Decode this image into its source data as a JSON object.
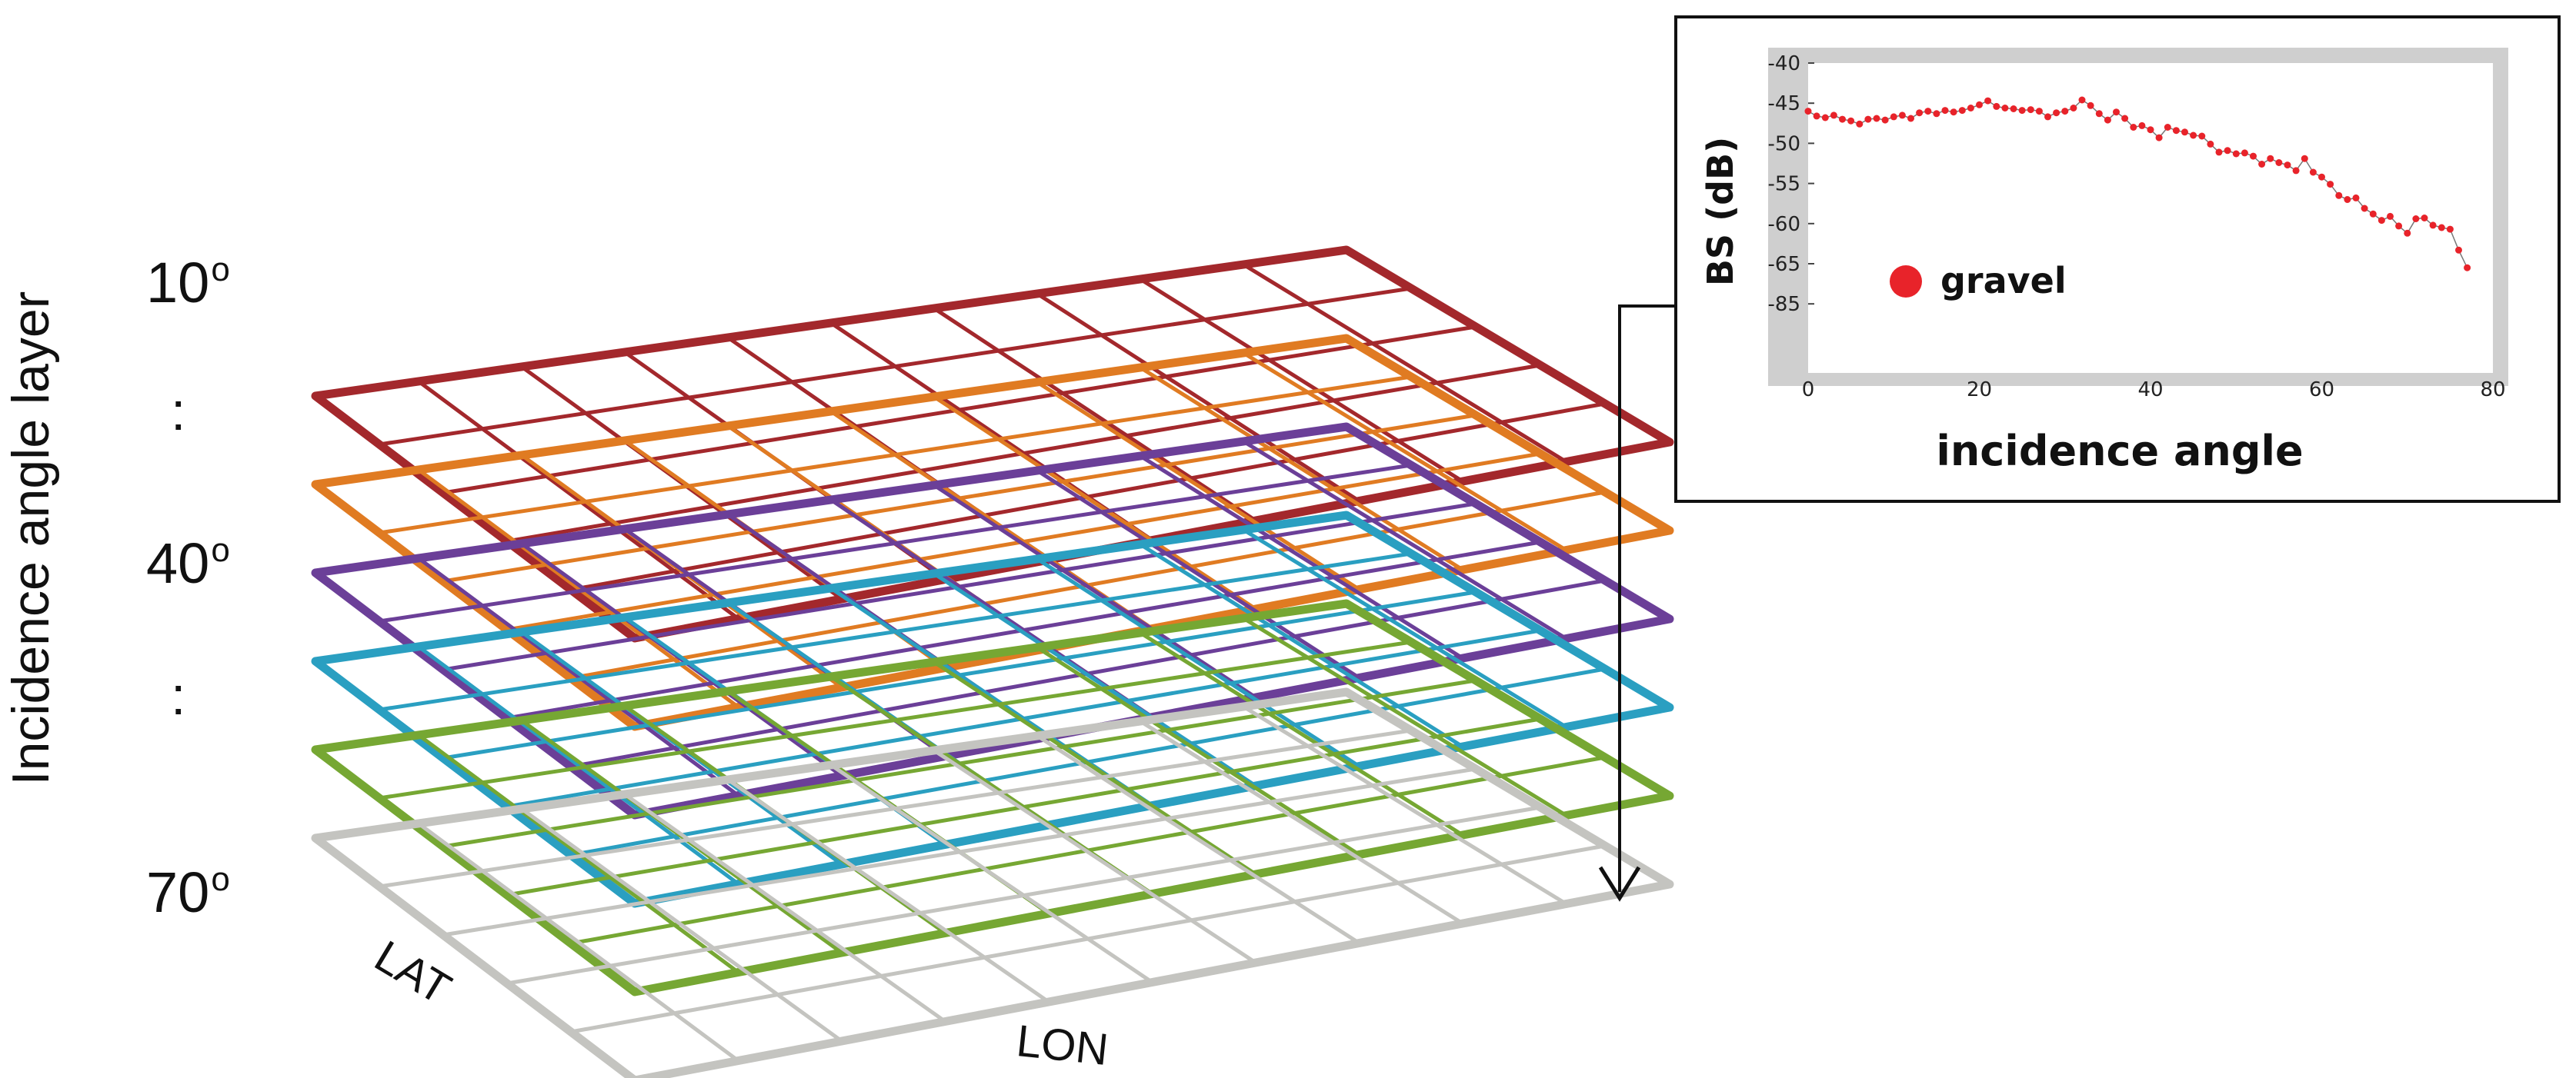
{
  "axis_title": "Incidence angle layer",
  "layer_labels": {
    "top": "10",
    "middle": "40",
    "bottom": "70",
    "degree_mark": "o",
    "separator": ":"
  },
  "grid": {
    "lat_label": "LAT",
    "lon_label": "LON",
    "layer_colors": [
      "#a3282c",
      "#e07b22",
      "#6b3f98",
      "#2a9fc1",
      "#76a733",
      "#c4c4c0"
    ]
  },
  "inset": {
    "ylabel": "BS (dB)",
    "xlabel": "incidence angle",
    "legend": "gravel",
    "legend_color": "#e8232a",
    "series_color": "#e8232a"
  },
  "chart_data": {
    "type": "scatter",
    "title": "",
    "xlabel": "incidence angle",
    "ylabel": "BS (dB)",
    "xlim": [
      0,
      80
    ],
    "ylim": [
      -85,
      -40
    ],
    "x_ticks": [
      "0",
      "20",
      "40",
      "60",
      "80"
    ],
    "y_ticks": [
      "-40",
      "-45",
      "-50",
      "-55",
      "-60",
      "-65",
      "-85"
    ],
    "series": [
      {
        "name": "gravel",
        "x": [
          0,
          1,
          2,
          3,
          4,
          5,
          6,
          7,
          8,
          9,
          10,
          11,
          12,
          13,
          14,
          15,
          16,
          17,
          18,
          19,
          20,
          21,
          22,
          23,
          24,
          25,
          26,
          27,
          28,
          29,
          30,
          31,
          32,
          33,
          34,
          35,
          36,
          37,
          38,
          39,
          40,
          41,
          42,
          43,
          44,
          45,
          46,
          47,
          48,
          49,
          50,
          51,
          52,
          53,
          54,
          55,
          56,
          57,
          58,
          59,
          60,
          61,
          62,
          63,
          64,
          65,
          66,
          67,
          68,
          69,
          70,
          71,
          72,
          73,
          74,
          75,
          76,
          77
        ],
        "y": [
          -46.0,
          -46.6,
          -46.8,
          -46.5,
          -47.0,
          -47.2,
          -47.6,
          -47.0,
          -46.9,
          -47.1,
          -46.7,
          -46.5,
          -46.9,
          -46.2,
          -46.0,
          -46.3,
          -45.9,
          -46.1,
          -45.9,
          -45.6,
          -45.2,
          -44.7,
          -45.4,
          -45.6,
          -45.7,
          -45.9,
          -45.8,
          -46.0,
          -46.7,
          -46.2,
          -46.0,
          -45.6,
          -44.6,
          -45.3,
          -46.3,
          -47.1,
          -46.1,
          -46.9,
          -48.0,
          -47.8,
          -48.3,
          -49.3,
          -48.0,
          -48.4,
          -48.6,
          -49.0,
          -49.1,
          -50.1,
          -51.1,
          -50.9,
          -51.3,
          -51.2,
          -51.6,
          -52.6,
          -51.9,
          -52.4,
          -52.7,
          -53.4,
          -51.9,
          -53.6,
          -54.2,
          -55.1,
          -56.5,
          -57.0,
          -56.8,
          -58.1,
          -58.8,
          -59.6,
          -59.1,
          -60.3,
          -61.2,
          -59.4,
          -59.3,
          -60.2,
          -60.5,
          -60.7,
          -63.3,
          -65.5
        ]
      }
    ]
  }
}
